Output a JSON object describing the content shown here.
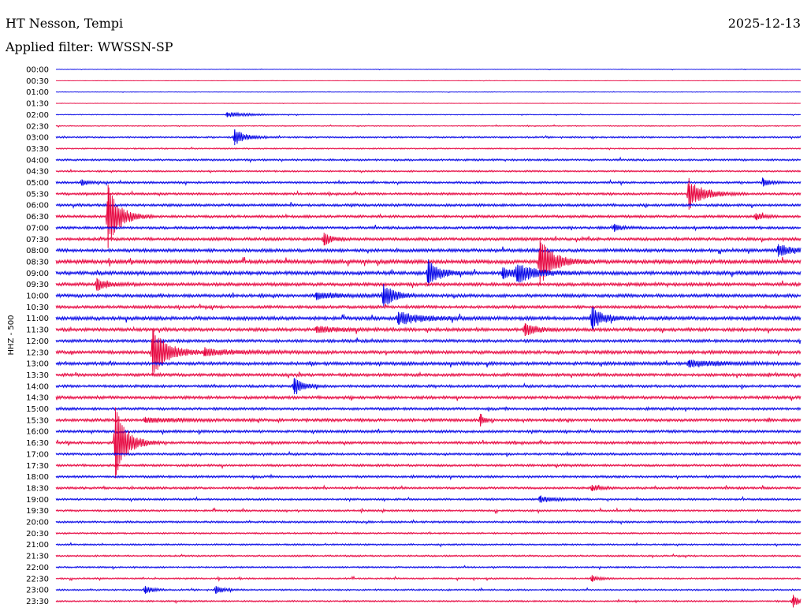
{
  "header": {
    "station": "HT Nesson, Tempi",
    "date": "2025-12-13",
    "filter": "Applied filter: WWSSN-SP"
  },
  "chart_data": {
    "type": "line",
    "ylabel": "HHZ - 500",
    "colors": [
      "#0000e6",
      "#e6003c"
    ],
    "rows": [
      "00:00",
      "00:30",
      "01:00",
      "01:30",
      "02:00",
      "02:30",
      "03:00",
      "03:30",
      "04:00",
      "04:30",
      "05:00",
      "05:30",
      "06:00",
      "06:30",
      "07:00",
      "07:30",
      "08:00",
      "08:30",
      "09:00",
      "09:30",
      "10:00",
      "10:30",
      "11:00",
      "11:30",
      "12:00",
      "12:30",
      "13:00",
      "13:30",
      "14:00",
      "14:30",
      "15:00",
      "15:30",
      "16:00",
      "16:30",
      "17:00",
      "17:30",
      "18:00",
      "18:30",
      "19:00",
      "19:30",
      "20:00",
      "20:30",
      "21:00",
      "21:30",
      "22:00",
      "22:30",
      "23:00",
      "23:30"
    ],
    "noise": [
      0.3,
      0.2,
      0.3,
      0.2,
      0.5,
      0.6,
      1.0,
      0.8,
      1.2,
      1.0,
      1.3,
      1.4,
      1.6,
      1.6,
      1.6,
      1.8,
      2.0,
      2.4,
      2.2,
      2.0,
      2.0,
      1.8,
      2.2,
      2.0,
      1.8,
      2.0,
      2.0,
      1.8,
      1.6,
      1.8,
      1.6,
      1.8,
      1.6,
      1.6,
      1.4,
      1.4,
      1.4,
      1.4,
      1.2,
      1.2,
      1.2,
      1.0,
      1.0,
      1.0,
      1.0,
      1.0,
      1.0,
      1.0
    ],
    "events": [
      {
        "row": 6,
        "x": 0.24,
        "amp": 10,
        "dur": 0.015
      },
      {
        "row": 4,
        "x": 0.23,
        "amp": 3,
        "dur": 0.03
      },
      {
        "row": 11,
        "x": 0.85,
        "amp": 20,
        "dur": 0.02
      },
      {
        "row": 10,
        "x": 0.035,
        "amp": 4,
        "dur": 0.01
      },
      {
        "row": 10,
        "x": 0.95,
        "amp": 5,
        "dur": 0.01
      },
      {
        "row": 13,
        "x": 0.07,
        "amp": 40,
        "dur": 0.015
      },
      {
        "row": 13,
        "x": 0.94,
        "amp": 4,
        "dur": 0.01
      },
      {
        "row": 15,
        "x": 0.36,
        "amp": 8,
        "dur": 0.01
      },
      {
        "row": 14,
        "x": 0.75,
        "amp": 5,
        "dur": 0.01
      },
      {
        "row": 17,
        "x": 0.65,
        "amp": 30,
        "dur": 0.018
      },
      {
        "row": 16,
        "x": 0.97,
        "amp": 8,
        "dur": 0.02
      },
      {
        "row": 18,
        "x": 0.5,
        "amp": 16,
        "dur": 0.015
      },
      {
        "row": 18,
        "x": 0.6,
        "amp": 7,
        "dur": 0.03
      },
      {
        "row": 18,
        "x": 0.62,
        "amp": 10,
        "dur": 0.02
      },
      {
        "row": 19,
        "x": 0.055,
        "amp": 8,
        "dur": 0.015
      },
      {
        "row": 20,
        "x": 0.44,
        "amp": 15,
        "dur": 0.015
      },
      {
        "row": 20,
        "x": 0.35,
        "amp": 4,
        "dur": 0.03
      },
      {
        "row": 22,
        "x": 0.46,
        "amp": 8,
        "dur": 0.03
      },
      {
        "row": 22,
        "x": 0.72,
        "amp": 14,
        "dur": 0.015
      },
      {
        "row": 23,
        "x": 0.63,
        "amp": 8,
        "dur": 0.015
      },
      {
        "row": 23,
        "x": 0.35,
        "amp": 4,
        "dur": 0.03
      },
      {
        "row": 25,
        "x": 0.13,
        "amp": 30,
        "dur": 0.02
      },
      {
        "row": 25,
        "x": 0.2,
        "amp": 4,
        "dur": 0.04
      },
      {
        "row": 26,
        "x": 0.85,
        "amp": 4,
        "dur": 0.04
      },
      {
        "row": 28,
        "x": 0.32,
        "amp": 10,
        "dur": 0.012
      },
      {
        "row": 31,
        "x": 0.12,
        "amp": 3,
        "dur": 0.04
      },
      {
        "row": 31,
        "x": 0.57,
        "amp": 8,
        "dur": 0.005
      },
      {
        "row": 33,
        "x": 0.08,
        "amp": 45,
        "dur": 0.015
      },
      {
        "row": 37,
        "x": 0.72,
        "amp": 4,
        "dur": 0.01
      },
      {
        "row": 38,
        "x": 0.65,
        "amp": 4,
        "dur": 0.02
      },
      {
        "row": 45,
        "x": 0.72,
        "amp": 4,
        "dur": 0.01
      },
      {
        "row": 46,
        "x": 0.12,
        "amp": 5,
        "dur": 0.01
      },
      {
        "row": 46,
        "x": 0.215,
        "amp": 5,
        "dur": 0.01
      },
      {
        "row": 47,
        "x": 0.99,
        "amp": 8,
        "dur": 0.008
      }
    ]
  }
}
